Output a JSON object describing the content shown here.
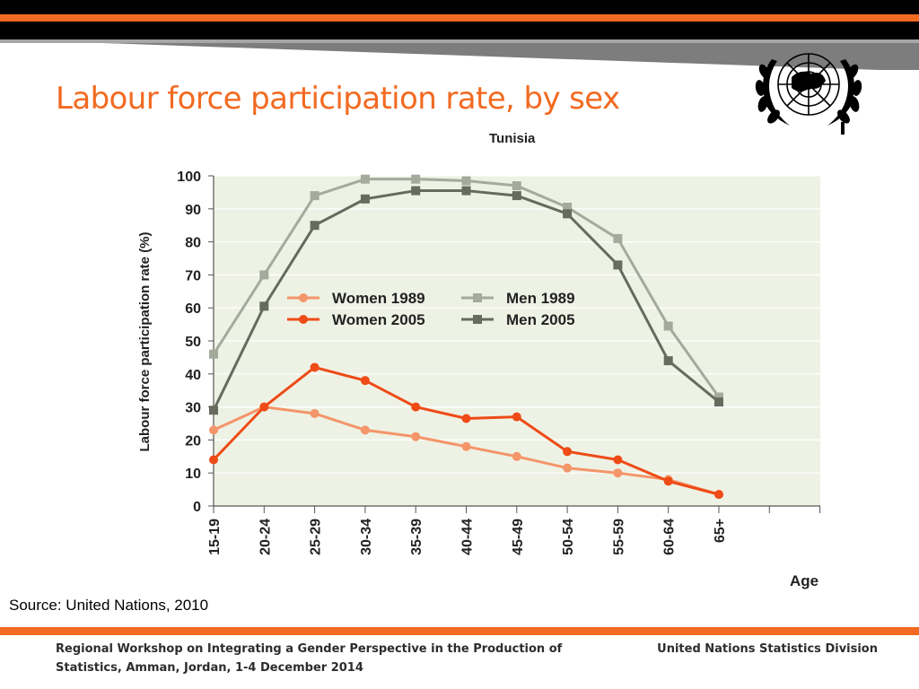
{
  "slide": {
    "title": "Labour force participation rate, by sex",
    "source": "Source: United Nations, 2010",
    "footer_left": "Regional Workshop on Integrating a Gender Perspective in the Production of Statistics, Amman, Jordan, 1-4 December 2014",
    "footer_right": "United Nations Statistics Division"
  },
  "colors": {
    "accent_orange": "#f26a21",
    "top_band": "#000000",
    "plot_background": "#eef2e4"
  },
  "icons": {
    "logo": "united-nations-emblem"
  },
  "chart_data": {
    "type": "line",
    "title": "Tunisia",
    "xlabel": "Age",
    "ylabel": "Labour force participation rate  (%)",
    "categories": [
      "15-19",
      "20-24",
      "25-29",
      "30-34",
      "35-39",
      "40-44",
      "45-49",
      "50-54",
      "55-59",
      "60-64",
      "65+"
    ],
    "ylim": [
      0,
      100
    ],
    "yticks": [
      0,
      10,
      20,
      30,
      40,
      50,
      60,
      70,
      80,
      90,
      100
    ],
    "grid": true,
    "legend_position": "center",
    "series": [
      {
        "name": "Women 1989",
        "color": "#f4956a",
        "marker": "circle",
        "values": [
          23,
          30,
          28,
          23,
          21,
          18,
          15,
          11.5,
          10,
          8,
          3.5
        ]
      },
      {
        "name": "Women 2005",
        "color": "#ee4b17",
        "marker": "circle",
        "values": [
          14,
          30,
          42,
          38,
          30,
          26.5,
          27,
          16.5,
          14,
          7.5,
          3.5
        ]
      },
      {
        "name": "Men 1989",
        "color": "#a4aa9c",
        "marker": "square",
        "values": [
          46,
          70,
          94,
          99,
          99,
          98.5,
          97,
          90.5,
          81,
          54.5,
          33
        ]
      },
      {
        "name": "Men 2005",
        "color": "#666b5d",
        "marker": "square",
        "values": [
          29,
          60.5,
          85,
          93,
          95.5,
          95.5,
          94,
          88.5,
          73,
          44,
          31.5
        ]
      }
    ]
  }
}
